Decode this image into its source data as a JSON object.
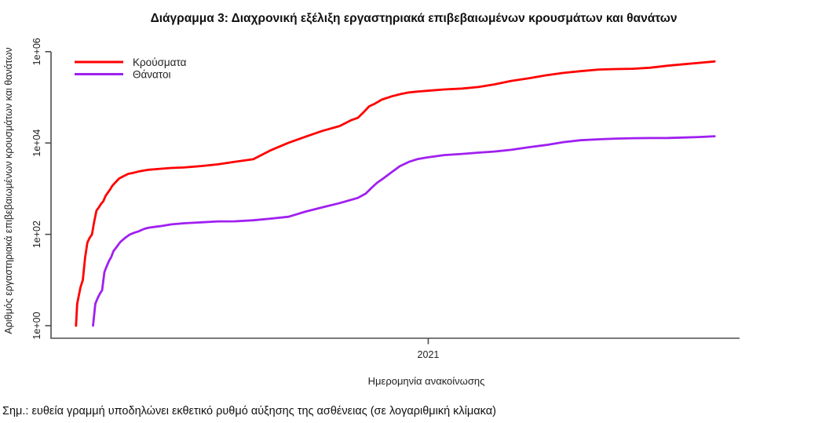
{
  "chart_data": {
    "type": "line",
    "title": "Διάγραμμα 3: Διαχρονική εξέλιξη εργαστηριακά επιβεβαιωμένων κρουσμάτων και θανάτων",
    "xlabel": "Ημερομηνία ανακοίνωσης",
    "ylabel": "Αριθμός εργαστηριακά επιβεβαιωμένων κρουσμάτων και θανάτων",
    "y_scale": "log10",
    "ylim": [
      1,
      1000000
    ],
    "y_ticks": [
      "1e+00",
      "1e+02",
      "1e+04",
      "1e+06"
    ],
    "y_tick_values": [
      1,
      100,
      10000,
      1000000
    ],
    "x_ticks": [
      "2021"
    ],
    "x_tick_dates": [
      "2021-01-01"
    ],
    "x_range": [
      "2020-02-04",
      "2021-10-02"
    ],
    "grid": false,
    "legend_position": "top-left",
    "series": [
      {
        "name": "Κρούσματα",
        "color": "#ff0000",
        "points": [
          [
            "2020-02-26",
            1
          ],
          [
            "2020-02-27",
            3
          ],
          [
            "2020-02-28",
            4
          ],
          [
            "2020-03-01",
            7
          ],
          [
            "2020-03-03",
            10
          ],
          [
            "2020-03-05",
            31
          ],
          [
            "2020-03-07",
            66
          ],
          [
            "2020-03-09",
            84
          ],
          [
            "2020-03-11",
            99
          ],
          [
            "2020-03-13",
            190
          ],
          [
            "2020-03-15",
            331
          ],
          [
            "2020-03-17",
            387
          ],
          [
            "2020-03-19",
            464
          ],
          [
            "2020-03-21",
            530
          ],
          [
            "2020-03-23",
            695
          ],
          [
            "2020-03-25",
            821
          ],
          [
            "2020-03-27",
            966
          ],
          [
            "2020-03-29",
            1156
          ],
          [
            "2020-03-31",
            1314
          ],
          [
            "2020-04-04",
            1673
          ],
          [
            "2020-04-08",
            1884
          ],
          [
            "2020-04-12",
            2114
          ],
          [
            "2020-04-16",
            2207
          ],
          [
            "2020-04-22",
            2408
          ],
          [
            "2020-04-30",
            2591
          ],
          [
            "2020-05-10",
            2716
          ],
          [
            "2020-05-20",
            2840
          ],
          [
            "2020-05-31",
            2915
          ],
          [
            "2020-06-15",
            3121
          ],
          [
            "2020-06-30",
            3409
          ],
          [
            "2020-07-15",
            3883
          ],
          [
            "2020-07-31",
            4401
          ],
          [
            "2020-08-15",
            6858
          ],
          [
            "2020-08-31",
            10134
          ],
          [
            "2020-09-15",
            13730
          ],
          [
            "2020-09-30",
            18475
          ],
          [
            "2020-10-15",
            23495
          ],
          [
            "2020-10-25",
            31496
          ],
          [
            "2020-10-31",
            35510
          ],
          [
            "2020-11-05",
            46892
          ],
          [
            "2020-11-10",
            63321
          ],
          [
            "2020-11-15",
            72510
          ],
          [
            "2020-11-21",
            88819
          ],
          [
            "2020-11-30",
            105271
          ],
          [
            "2020-12-08",
            118045
          ],
          [
            "2020-12-15",
            127557
          ],
          [
            "2020-12-23",
            133922
          ],
          [
            "2020-12-31",
            138850
          ],
          [
            "2021-01-15",
            148370
          ],
          [
            "2021-01-31",
            155678
          ],
          [
            "2021-02-14",
            168000
          ],
          [
            "2021-02-28",
            191100
          ],
          [
            "2021-03-15",
            228410
          ],
          [
            "2021-03-31",
            262800
          ],
          [
            "2021-04-15",
            304184
          ],
          [
            "2021-04-30",
            342908
          ],
          [
            "2021-05-15",
            373881
          ],
          [
            "2021-05-31",
            405542
          ],
          [
            "2021-06-15",
            414833
          ],
          [
            "2021-06-30",
            422132
          ],
          [
            "2021-07-15",
            444783
          ],
          [
            "2021-07-31",
            493025
          ],
          [
            "2021-08-15",
            532705
          ],
          [
            "2021-08-31",
            578835
          ],
          [
            "2021-09-10",
            610000
          ]
        ]
      },
      {
        "name": "Θάνατοι",
        "color": "#a020f0",
        "points": [
          [
            "2020-03-12",
            1
          ],
          [
            "2020-03-14",
            3
          ],
          [
            "2020-03-16",
            4
          ],
          [
            "2020-03-18",
            5
          ],
          [
            "2020-03-20",
            6
          ],
          [
            "2020-03-22",
            15
          ],
          [
            "2020-03-24",
            20
          ],
          [
            "2020-03-26",
            26
          ],
          [
            "2020-03-28",
            32
          ],
          [
            "2020-03-30",
            43
          ],
          [
            "2020-04-01",
            50
          ],
          [
            "2020-04-05",
            68
          ],
          [
            "2020-04-09",
            83
          ],
          [
            "2020-04-13",
            98
          ],
          [
            "2020-04-17",
            108
          ],
          [
            "2020-04-21",
            116
          ],
          [
            "2020-04-26",
            132
          ],
          [
            "2020-04-30",
            140
          ],
          [
            "2020-05-10",
            151
          ],
          [
            "2020-05-20",
            165
          ],
          [
            "2020-05-31",
            175
          ],
          [
            "2020-06-15",
            183
          ],
          [
            "2020-06-30",
            192
          ],
          [
            "2020-07-15",
            193
          ],
          [
            "2020-07-31",
            203
          ],
          [
            "2020-08-15",
            221
          ],
          [
            "2020-08-31",
            243
          ],
          [
            "2020-09-15",
            315
          ],
          [
            "2020-09-30",
            391
          ],
          [
            "2020-10-15",
            482
          ],
          [
            "2020-10-31",
            626
          ],
          [
            "2020-11-07",
            784
          ],
          [
            "2020-11-12",
            1035
          ],
          [
            "2020-11-17",
            1347
          ],
          [
            "2020-11-23",
            1714
          ],
          [
            "2020-11-30",
            2321
          ],
          [
            "2020-12-07",
            3099
          ],
          [
            "2020-12-15",
            3870
          ],
          [
            "2020-12-23",
            4457
          ],
          [
            "2020-12-31",
            4838
          ],
          [
            "2021-01-15",
            5441
          ],
          [
            "2021-01-31",
            5764
          ],
          [
            "2021-02-14",
            6152
          ],
          [
            "2021-02-28",
            6504
          ],
          [
            "2021-03-15",
            7091
          ],
          [
            "2021-03-31",
            8093
          ],
          [
            "2021-04-15",
            9054
          ],
          [
            "2021-04-30",
            10453
          ],
          [
            "2021-05-15",
            11471
          ],
          [
            "2021-05-31",
            12024
          ],
          [
            "2021-06-15",
            12460
          ],
          [
            "2021-06-30",
            12737
          ],
          [
            "2021-07-15",
            12806
          ],
          [
            "2021-07-31",
            12890
          ],
          [
            "2021-08-15",
            13193
          ],
          [
            "2021-08-31",
            13610
          ],
          [
            "2021-09-10",
            14050
          ]
        ]
      }
    ]
  },
  "note": {
    "text": "Σημ.: ευθεία γραμμή υποδηλώνει εκθετικό ρυθμό αύξησης της ασθένειας (σε λογαριθμική κλίμακα)"
  }
}
